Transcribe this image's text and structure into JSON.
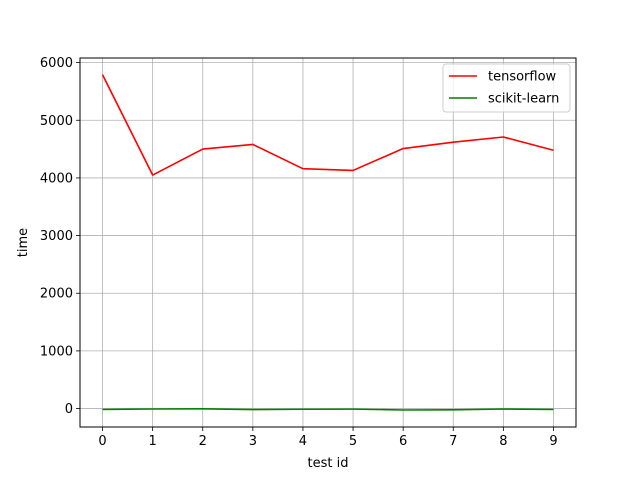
{
  "chart_data": {
    "type": "line",
    "xlabel": "test id",
    "ylabel": "time",
    "x": [
      0,
      1,
      2,
      3,
      4,
      5,
      6,
      7,
      8,
      9
    ],
    "xticks": [
      0,
      1,
      2,
      3,
      4,
      5,
      6,
      7,
      8,
      9
    ],
    "yticks": [
      0,
      1000,
      2000,
      3000,
      4000,
      5000,
      6000
    ],
    "xlim": [
      -0.45,
      9.45
    ],
    "ylim": [
      -320,
      6080
    ],
    "grid": true,
    "legend_position": "top-right",
    "series": [
      {
        "name": "tensorflow",
        "color": "#ff0000",
        "values": [
          5790,
          4050,
          4500,
          4580,
          4160,
          4130,
          4510,
          4620,
          4710,
          4480
        ]
      },
      {
        "name": "scikit-learn",
        "color": "#008000",
        "values": [
          -15,
          -8,
          -5,
          -18,
          -12,
          -10,
          -25,
          -22,
          -8,
          -15
        ]
      }
    ]
  }
}
